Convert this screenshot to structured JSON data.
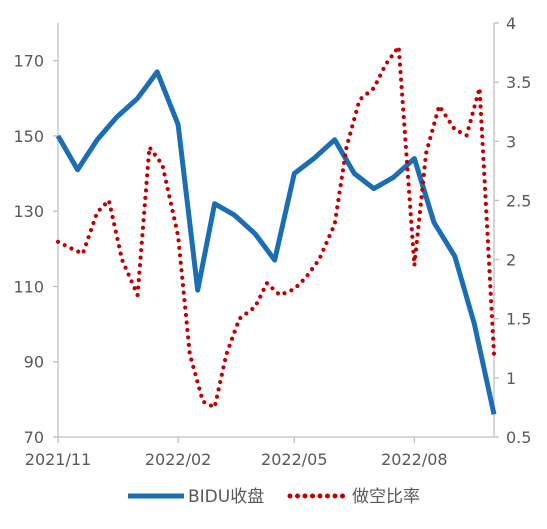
{
  "chart_data": {
    "type": "line",
    "title": "",
    "x": [
      "2021-11-01",
      "2021-11-16",
      "2021-12-01",
      "2021-12-16",
      "2022-01-01",
      "2022-01-16",
      "2022-02-01",
      "2022-02-16",
      "2022-03-01",
      "2022-03-16",
      "2022-04-01",
      "2022-04-16",
      "2022-05-01",
      "2022-05-16",
      "2022-06-01",
      "2022-06-16",
      "2022-07-01",
      "2022-07-16",
      "2022-08-01",
      "2022-08-16",
      "2022-09-01",
      "2022-09-16",
      "2022-10-01"
    ],
    "x_tick_labels": [
      "2021/11",
      "2022/02",
      "2022/05",
      "2022/08"
    ],
    "x_tick_dates": [
      "2021-11-01",
      "2022-02-01",
      "2022-05-01",
      "2022-08-01"
    ],
    "y_left": {
      "ylim": [
        70,
        180
      ],
      "ticks": [
        70,
        90,
        110,
        130,
        150,
        170
      ]
    },
    "y_right": {
      "ylim": [
        0.5,
        4
      ],
      "ticks": [
        0.5,
        1,
        1.5,
        2,
        2.5,
        3,
        3.5,
        4
      ]
    },
    "series": [
      {
        "name": "BIDU收盘",
        "axis": "left",
        "style": "solid",
        "color": "#1B6EB4",
        "x": [
          "2021-11-01",
          "2021-11-16",
          "2021-12-01",
          "2021-12-16",
          "2022-01-01",
          "2022-01-16",
          "2022-02-01",
          "2022-02-16",
          "2022-03-01",
          "2022-03-16",
          "2022-04-01",
          "2022-04-16",
          "2022-05-01",
          "2022-05-16",
          "2022-06-01",
          "2022-06-16",
          "2022-07-01",
          "2022-07-16",
          "2022-08-01",
          "2022-08-16",
          "2022-09-01",
          "2022-09-16",
          "2022-10-01"
        ],
        "values": [
          150,
          141,
          149,
          155,
          160,
          167,
          153,
          109,
          132,
          129,
          124,
          117,
          140,
          144,
          149,
          140,
          136,
          139,
          144,
          127,
          118,
          100,
          76
        ]
      },
      {
        "name": "做空比率",
        "axis": "right",
        "style": "dotted",
        "color": "#C00000",
        "x": [
          "2021-11-01",
          "2021-11-10",
          "2021-11-20",
          "2021-12-01",
          "2021-12-10",
          "2021-12-20",
          "2022-01-01",
          "2022-01-10",
          "2022-01-20",
          "2022-02-01",
          "2022-02-10",
          "2022-02-20",
          "2022-03-01",
          "2022-03-10",
          "2022-03-20",
          "2022-04-01",
          "2022-04-10",
          "2022-04-20",
          "2022-05-01",
          "2022-05-10",
          "2022-05-20",
          "2022-06-01",
          "2022-06-10",
          "2022-06-20",
          "2022-07-01",
          "2022-07-10",
          "2022-07-20",
          "2022-08-01",
          "2022-08-10",
          "2022-08-20",
          "2022-09-01",
          "2022-09-10",
          "2022-09-20",
          "2022-10-01"
        ],
        "values": [
          2.15,
          2.1,
          2.05,
          2.4,
          2.5,
          2.0,
          1.7,
          2.95,
          2.8,
          2.2,
          1.2,
          0.8,
          0.75,
          1.2,
          1.5,
          1.6,
          1.8,
          1.7,
          1.75,
          1.85,
          2.0,
          2.3,
          2.95,
          3.35,
          3.45,
          3.65,
          3.8,
          1.95,
          2.9,
          3.3,
          3.1,
          3.05,
          3.45,
          1.2
        ]
      }
    ],
    "legend": {
      "placement": "bottom",
      "entries": [
        "BIDU收盘",
        "做空比率"
      ]
    },
    "grid": false
  }
}
